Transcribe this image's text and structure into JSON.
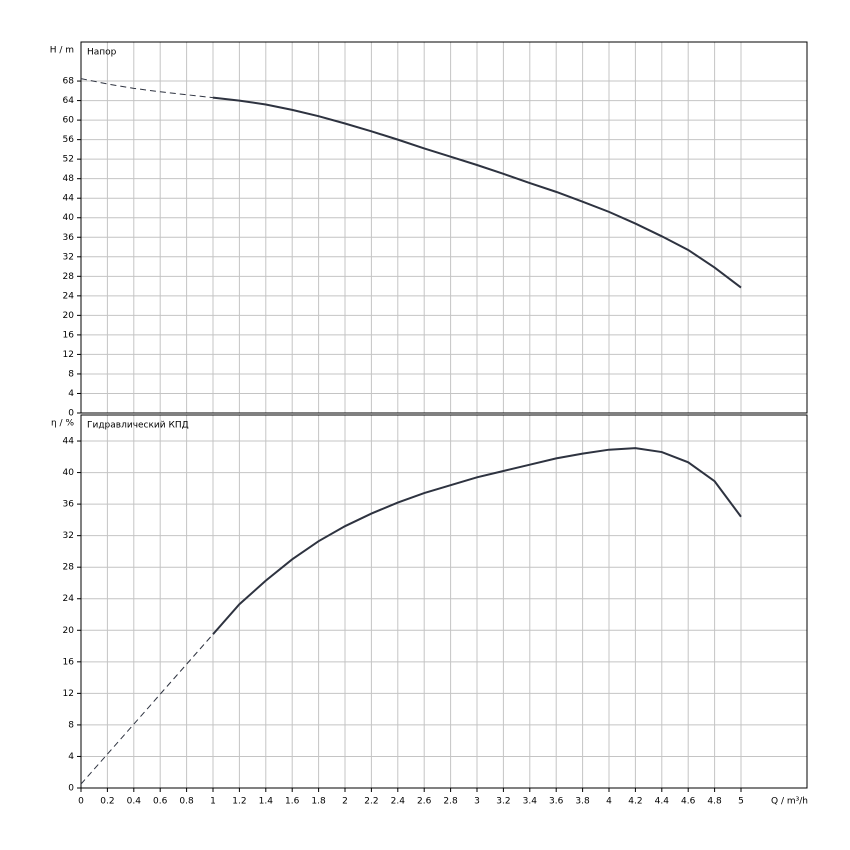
{
  "chart_data": [
    {
      "type": "line",
      "title": "Напор",
      "ylabel": "H / m",
      "xlim": [
        0,
        5.5
      ],
      "ylim": [
        0,
        76
      ],
      "xticks": [
        0,
        0.2,
        0.4,
        0.6,
        0.8,
        1,
        1.2,
        1.4,
        1.6,
        1.8,
        2,
        2.2,
        2.4,
        2.6,
        2.8,
        3,
        3.2,
        3.4,
        3.6,
        3.8,
        4,
        4.2,
        4.4,
        4.6,
        4.8,
        5
      ],
      "yticks": [
        0,
        4,
        8,
        12,
        16,
        20,
        24,
        28,
        32,
        36,
        40,
        44,
        48,
        52,
        56,
        60,
        64,
        68
      ],
      "grid": true,
      "series": [
        {
          "style": "dashed",
          "color": "#2e3340",
          "x": [
            0,
            0.2,
            0.4,
            0.6,
            0.8,
            1
          ],
          "values": [
            68.5,
            67.4,
            66.5,
            65.8,
            65.2,
            64.6
          ]
        },
        {
          "style": "solid",
          "color": "#2e3340",
          "x": [
            1,
            1.2,
            1.4,
            1.6,
            1.8,
            2,
            2.2,
            2.4,
            2.6,
            2.8,
            3,
            3.2,
            3.4,
            3.6,
            3.8,
            4,
            4.2,
            4.4,
            4.6,
            4.8,
            5
          ],
          "values": [
            64.6,
            64,
            63.2,
            62.1,
            60.8,
            59.3,
            57.7,
            56,
            54.2,
            52.5,
            50.8,
            49,
            47.1,
            45.3,
            43.3,
            41.2,
            38.8,
            36.2,
            33.4,
            29.8,
            25.7
          ]
        }
      ]
    },
    {
      "type": "line",
      "title": "Гидравлический КПД",
      "ylabel": "η / %",
      "xlabel": "Q / m³/h",
      "xlim": [
        0,
        5.5
      ],
      "ylim": [
        0,
        47.3
      ],
      "xticks": [
        0,
        0.2,
        0.4,
        0.6,
        0.8,
        1,
        1.2,
        1.4,
        1.6,
        1.8,
        2,
        2.2,
        2.4,
        2.6,
        2.8,
        3,
        3.2,
        3.4,
        3.6,
        3.8,
        4,
        4.2,
        4.4,
        4.6,
        4.8,
        5
      ],
      "yticks": [
        0,
        4,
        8,
        12,
        16,
        20,
        24,
        28,
        32,
        36,
        40,
        44
      ],
      "grid": true,
      "series": [
        {
          "style": "dashed",
          "color": "#2e3340",
          "x": [
            0,
            0.2,
            0.4,
            0.6,
            0.8,
            1
          ],
          "values": [
            0.5,
            4.3,
            8.1,
            11.9,
            15.7,
            19.5
          ]
        },
        {
          "style": "solid",
          "color": "#2e3340",
          "x": [
            1,
            1.2,
            1.4,
            1.6,
            1.8,
            2,
            2.2,
            2.4,
            2.6,
            2.8,
            3,
            3.2,
            3.4,
            3.6,
            3.8,
            4,
            4.2,
            4.4,
            4.6,
            4.8,
            5
          ],
          "values": [
            19.5,
            23.3,
            26.3,
            29,
            31.3,
            33.2,
            34.8,
            36.2,
            37.4,
            38.4,
            39.4,
            40.2,
            41,
            41.8,
            42.4,
            42.9,
            43.1,
            42.6,
            41.3,
            38.9,
            34.4
          ]
        }
      ]
    }
  ]
}
